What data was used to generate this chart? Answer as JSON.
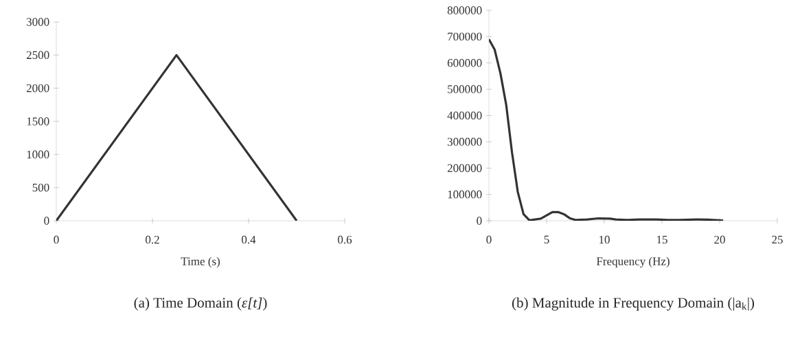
{
  "chart_data": [
    {
      "type": "line",
      "title": "(a) Time Domain (*ε[t]*)",
      "xlabel": "Time (s)",
      "x": [
        0,
        0.25,
        0.5
      ],
      "series": [
        {
          "color": "#333333",
          "values": [
            0,
            2500,
            0
          ]
        }
      ],
      "xlim": [
        0,
        0.6
      ],
      "ylim": [
        0,
        3000
      ],
      "xticks": [
        0,
        0.2,
        0.4,
        0.6
      ],
      "yticks": [
        0,
        500,
        1000,
        1500,
        2000,
        2500,
        3000
      ]
    },
    {
      "type": "line",
      "title": "(b) Magnitude in Frequency Domain (|a$_{k}$|)",
      "xlabel": "Frequency (Hz)",
      "x": [
        0,
        0.5,
        1,
        1.5,
        2,
        2.5,
        3,
        3.5,
        4.5,
        5.5,
        6,
        6.5,
        7,
        7.5,
        8.5,
        9.5,
        10.5,
        11,
        12,
        13,
        14.5,
        15.5,
        16.5,
        18,
        19,
        20,
        20.3
      ],
      "series": [
        {
          "color": "#333333",
          "values": [
            690000,
            650000,
            560000,
            440000,
            260000,
            110000,
            25000,
            2000,
            8000,
            33000,
            33000,
            25000,
            10000,
            3000,
            5000,
            9000,
            8000,
            5000,
            3000,
            5000,
            5000,
            3000,
            3000,
            5000,
            4000,
            2000,
            1000
          ]
        }
      ],
      "xlim": [
        0,
        25
      ],
      "ylim": [
        0,
        800000
      ],
      "xticks": [
        0,
        5,
        10,
        15,
        20,
        25
      ],
      "yticks": [
        0,
        100000,
        200000,
        300000,
        400000,
        500000,
        600000,
        700000,
        800000
      ]
    }
  ]
}
